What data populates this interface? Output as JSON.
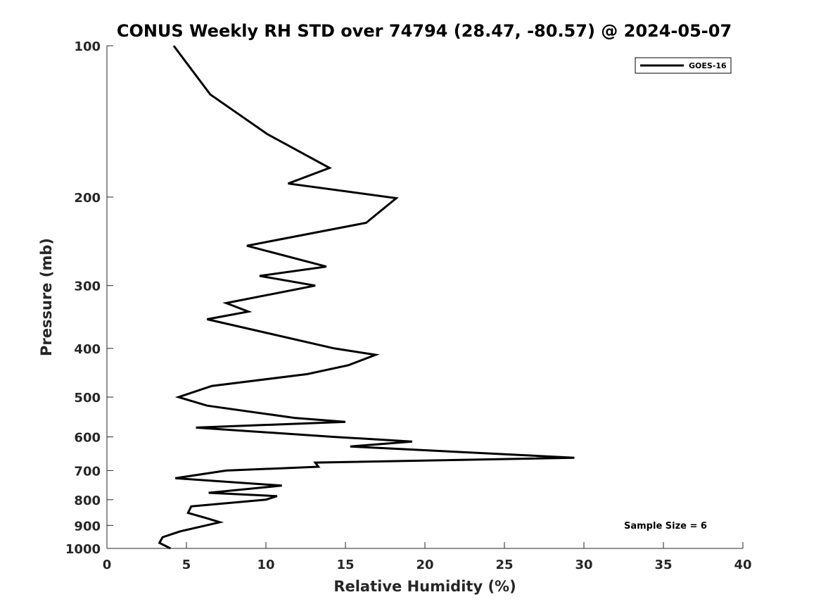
{
  "chart_data": {
    "type": "line",
    "title": "CONUS Weekly RH STD over 74794 (28.47, -80.57) @ 2024-05-07",
    "xlabel": "Relative Humidity (%)",
    "ylabel": "Pressure (mb)",
    "xlim": [
      0,
      40
    ],
    "ylim": [
      100,
      1000
    ],
    "y_scale": "log",
    "y_reversed": true,
    "grid": false,
    "legend_position": "top-right",
    "x_ticks": [
      "0",
      "5",
      "10",
      "15",
      "20",
      "25",
      "30",
      "35",
      "40"
    ],
    "y_ticks": [
      "100",
      "200",
      "300",
      "400",
      "500",
      "600",
      "700",
      "800",
      "900",
      "1000"
    ],
    "series": [
      {
        "name": "GOES-16",
        "color": "#000000",
        "points": [
          [
            4.2,
            100
          ],
          [
            6.5,
            125
          ],
          [
            10.1,
            150
          ],
          [
            14.0,
            175
          ],
          [
            11.4,
            188
          ],
          [
            18.2,
            201
          ],
          [
            16.3,
            225
          ],
          [
            8.8,
            250
          ],
          [
            13.8,
            275
          ],
          [
            9.6,
            287
          ],
          [
            13.1,
            300
          ],
          [
            7.5,
            325
          ],
          [
            8.9,
            338
          ],
          [
            6.3,
            350
          ],
          [
            14.3,
            400
          ],
          [
            16.9,
            412
          ],
          [
            15.2,
            432
          ],
          [
            12.6,
            450
          ],
          [
            6.6,
            475
          ],
          [
            4.5,
            500
          ],
          [
            6.3,
            520
          ],
          [
            11.8,
            550
          ],
          [
            15.0,
            560
          ],
          [
            5.6,
            575
          ],
          [
            14.3,
            600
          ],
          [
            19.2,
            613
          ],
          [
            15.3,
            627
          ],
          [
            29.4,
            660
          ],
          [
            13.1,
            675
          ],
          [
            13.3,
            688
          ],
          [
            7.5,
            700
          ],
          [
            4.3,
            725
          ],
          [
            11.0,
            750
          ],
          [
            6.4,
            775
          ],
          [
            10.7,
            787
          ],
          [
            10.0,
            800
          ],
          [
            5.3,
            825
          ],
          [
            5.1,
            850
          ],
          [
            6.4,
            873
          ],
          [
            7.1,
            887
          ],
          [
            4.6,
            925
          ],
          [
            3.5,
            950
          ],
          [
            3.3,
            975
          ],
          [
            4.0,
            1000
          ]
        ]
      }
    ],
    "annotations": [
      "Sample Size = 6"
    ]
  }
}
